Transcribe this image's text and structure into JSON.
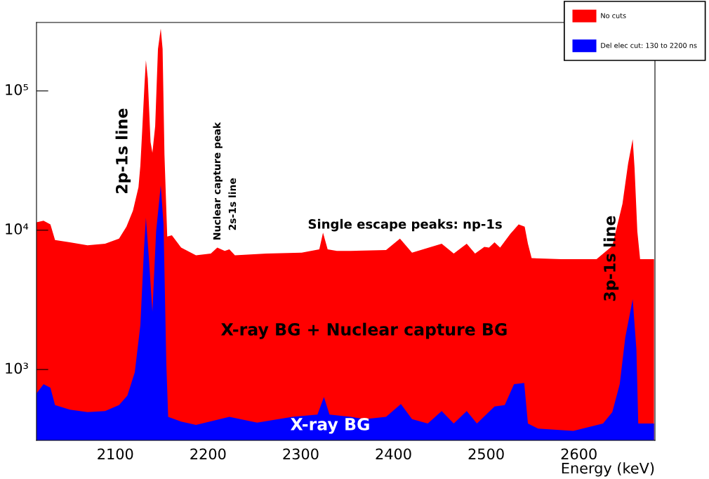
{
  "chart_data": {
    "type": "area",
    "xlabel": "Energy (keV)",
    "log": "y",
    "legend": "top right",
    "grid": false,
    "xlim": [
      2015,
      2682
    ],
    "ylim": [
      310,
      310000
    ],
    "xticks": [
      2100,
      2200,
      2300,
      2400,
      2500,
      2600
    ],
    "yticks": [
      {
        "value": 1000,
        "label": "10³"
      },
      {
        "value": 10000,
        "label": "10⁴"
      },
      {
        "value": 100000,
        "label": "10⁵"
      }
    ],
    "series": [
      {
        "name": "No cuts",
        "color": "#ff0000",
        "x": [
          2015,
          2022.6,
          2030,
          2035,
          2051,
          2070,
          2089,
          2104,
          2112,
          2119,
          2125,
          2127,
          2129,
          2131.5,
          2133,
          2135,
          2138,
          2140,
          2143,
          2146,
          2149,
          2151,
          2153,
          2156,
          2161,
          2171,
          2187,
          2203,
          2210,
          2218,
          2223,
          2229,
          2263,
          2301,
          2320,
          2324,
          2329,
          2339,
          2354,
          2392,
          2407,
          2420,
          2452,
          2465,
          2479,
          2488,
          2498,
          2503,
          2509,
          2515,
          2526,
          2535,
          2541.5,
          2545,
          2549,
          2581,
          2619,
          2636,
          2647,
          2653,
          2658,
          2660,
          2663,
          2666,
          2681
        ],
        "values": [
          11400,
          11700,
          11000,
          8500,
          8200,
          7800,
          8000,
          8700,
          10600,
          13800,
          20400,
          29000,
          52000,
          112000,
          166000,
          123000,
          43000,
          36000,
          56000,
          200000,
          280000,
          200000,
          35000,
          9000,
          9200,
          7500,
          6600,
          6800,
          7500,
          7100,
          7300,
          6600,
          6800,
          6900,
          7300,
          9600,
          7300,
          7100,
          7100,
          7200,
          8700,
          6900,
          8000,
          6800,
          8000,
          6800,
          7600,
          7500,
          8200,
          7500,
          9400,
          11000,
          10600,
          8000,
          6300,
          6200,
          6200,
          7700,
          15500,
          30000,
          45000,
          28000,
          9800,
          6200,
          6200
        ]
      },
      {
        "name": "Del elec cut: 130 to 2200 ns",
        "color": "#0000ff",
        "x": [
          2015,
          2022.6,
          2030,
          2035,
          2051,
          2070,
          2089,
          2104,
          2113,
          2121,
          2127,
          2131,
          2133,
          2136,
          2140,
          2144,
          2149,
          2152,
          2155,
          2157,
          2171,
          2187,
          2223,
          2253,
          2291,
          2318,
          2325,
          2331,
          2354,
          2369,
          2392,
          2408,
          2420,
          2437,
          2452,
          2465,
          2479,
          2490,
          2509,
          2520,
          2530,
          2541,
          2545,
          2556,
          2594,
          2626,
          2636,
          2644,
          2650,
          2658,
          2662,
          2664,
          2681
        ],
        "values": [
          673,
          785,
          741,
          555,
          515,
          494,
          503,
          555,
          650,
          955,
          2080,
          7500,
          12300,
          6600,
          2600,
          9800,
          21000,
          11000,
          1110,
          458,
          423,
          400,
          458,
          415,
          458,
          475,
          635,
          475,
          458,
          440,
          458,
          565,
          440,
          410,
          503,
          410,
          503,
          410,
          543,
          555,
          785,
          800,
          410,
          376,
          363,
          410,
          494,
          785,
          1700,
          3200,
          1400,
          410,
          410
        ]
      }
    ],
    "annotations": [
      "2p-1s line",
      "Nuclear capture peak",
      "2s-1s line",
      "Single escape peaks: np-1s",
      "3p-1s line",
      "X-ray BG + Nuclear capture BG",
      "X-ray BG"
    ]
  }
}
